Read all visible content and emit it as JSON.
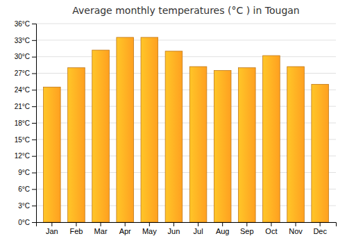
{
  "chart_data": {
    "type": "bar",
    "title": "Average monthly temperatures (°C ) in Tougan",
    "categories": [
      "Jan",
      "Feb",
      "Mar",
      "Apr",
      "May",
      "Jun",
      "Jul",
      "Aug",
      "Sep",
      "Oct",
      "Nov",
      "Dec"
    ],
    "values": [
      24.5,
      28.0,
      31.2,
      33.5,
      33.5,
      31.0,
      28.2,
      27.5,
      28.0,
      30.2,
      28.2,
      25.0
    ],
    "color": "#FFA020",
    "ylim": [
      0,
      36
    ],
    "yticks": [
      {
        "value": 0,
        "label": "0°C"
      },
      {
        "value": 3,
        "label": "3°C"
      },
      {
        "value": 6,
        "label": "6°C"
      },
      {
        "value": 9,
        "label": "9°C"
      },
      {
        "value": 12,
        "label": "12°C"
      },
      {
        "value": 15,
        "label": "15°C"
      },
      {
        "value": 18,
        "label": "18°C"
      },
      {
        "value": 21,
        "label": "21°C"
      },
      {
        "value": 24,
        "label": "24°C"
      },
      {
        "value": 27,
        "label": "27°C"
      },
      {
        "value": 30,
        "label": "30°C"
      },
      {
        "value": 33,
        "label": "33°C"
      },
      {
        "value": 36,
        "label": "36°C"
      }
    ],
    "grid": true
  }
}
